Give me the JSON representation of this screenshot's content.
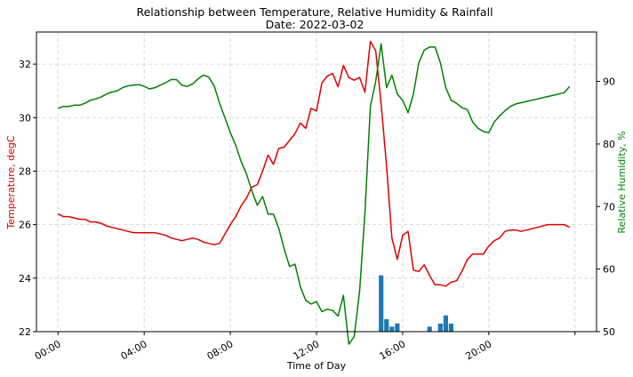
{
  "chart_data": {
    "type": "line",
    "title": "Relationship between Temperature, Relative Humidity & Rainfall",
    "subtitle": "Date: 2022-03-02",
    "xlabel": "Time of Day",
    "ylabel_left": "Temperature, degC",
    "ylabel_right": "Relative Humidity, %",
    "ylim_left": [
      22,
      33.2
    ],
    "ylim_right": [
      50,
      97.9
    ],
    "xlim": [
      "23:00",
      "25:00 next day"
    ],
    "grid": true,
    "x_tick_labels": [
      "00:00",
      "04:00",
      "08:00",
      "12:00",
      "16:00",
      "20:00",
      ""
    ],
    "y_tick_labels_left": [
      "22",
      "24",
      "26",
      "28",
      "30",
      "32"
    ],
    "y_tick_labels_right": [
      "50",
      "60",
      "70",
      "80",
      "90"
    ],
    "colors": {
      "temperature": "#e00000",
      "humidity": "#008000",
      "rainfall": "#1f77b4"
    },
    "series": [
      {
        "key": "temperature",
        "axis": "left",
        "type": "line",
        "x": [
          "00:00",
          "00:15",
          "00:30",
          "00:45",
          "01:00",
          "01:15",
          "01:30",
          "01:45",
          "02:00",
          "02:15",
          "02:30",
          "02:45",
          "03:00",
          "03:15",
          "03:30",
          "03:45",
          "04:00",
          "04:15",
          "04:30",
          "04:45",
          "05:00",
          "05:15",
          "05:30",
          "05:45",
          "06:00",
          "06:15",
          "06:30",
          "06:45",
          "07:00",
          "07:15",
          "07:30",
          "07:45",
          "08:00",
          "08:15",
          "08:30",
          "08:45",
          "09:00",
          "09:15",
          "09:30",
          "09:45",
          "10:00",
          "10:15",
          "10:30",
          "10:45",
          "11:00",
          "11:15",
          "11:30",
          "11:45",
          "12:00",
          "12:15",
          "12:30",
          "12:45",
          "13:00",
          "13:15",
          "13:30",
          "13:45",
          "14:00",
          "14:15",
          "14:30",
          "14:45",
          "15:00",
          "15:15",
          "15:30",
          "15:45",
          "16:00",
          "16:15",
          "16:30",
          "16:45",
          "17:00",
          "17:15",
          "17:30",
          "17:45",
          "18:00",
          "18:15",
          "18:30",
          "18:45",
          "19:00",
          "19:15",
          "19:30",
          "19:45",
          "20:00",
          "20:15",
          "20:30",
          "20:45",
          "21:00",
          "21:15",
          "21:30",
          "21:45",
          "22:00",
          "22:15",
          "22:30",
          "22:45",
          "23:00",
          "23:15",
          "23:30",
          "23:45"
        ],
        "values": [
          26.4,
          26.3,
          26.3,
          26.25,
          26.2,
          26.2,
          26.1,
          26.1,
          26.05,
          25.95,
          25.9,
          25.85,
          25.8,
          25.75,
          25.7,
          25.7,
          25.7,
          25.7,
          25.7,
          25.65,
          25.6,
          25.5,
          25.45,
          25.4,
          25.45,
          25.5,
          25.45,
          25.35,
          25.3,
          25.25,
          25.3,
          25.65,
          26.0,
          26.3,
          26.7,
          27.0,
          27.4,
          27.5,
          28.0,
          28.6,
          28.25,
          28.85,
          28.9,
          29.15,
          29.4,
          29.8,
          29.6,
          30.35,
          30.25,
          31.3,
          31.55,
          31.65,
          31.15,
          31.95,
          31.5,
          31.4,
          31.5,
          30.95,
          32.85,
          32.5,
          30.5,
          28.2,
          25.5,
          24.7,
          25.6,
          25.75,
          24.3,
          24.25,
          24.5,
          24.1,
          23.75,
          23.75,
          23.7,
          23.85,
          23.9,
          24.25,
          24.7,
          24.9,
          24.9,
          24.9,
          25.2,
          25.4,
          25.5,
          25.75,
          25.8,
          25.8,
          25.75,
          25.8,
          25.85,
          25.9,
          25.95,
          26.0,
          26.0,
          26.0,
          26.0,
          25.9
        ]
      },
      {
        "key": "humidity",
        "axis": "right",
        "type": "line",
        "x": [
          "00:00",
          "00:15",
          "00:30",
          "00:45",
          "01:00",
          "01:15",
          "01:30",
          "01:45",
          "02:00",
          "02:15",
          "02:30",
          "02:45",
          "03:00",
          "03:15",
          "03:30",
          "03:45",
          "04:00",
          "04:15",
          "04:30",
          "04:45",
          "05:00",
          "05:15",
          "05:30",
          "05:45",
          "06:00",
          "06:15",
          "06:30",
          "06:45",
          "07:00",
          "07:15",
          "07:30",
          "07:45",
          "08:00",
          "08:15",
          "08:30",
          "08:45",
          "09:00",
          "09:15",
          "09:30",
          "09:45",
          "10:00",
          "10:15",
          "10:30",
          "10:45",
          "11:00",
          "11:15",
          "11:30",
          "11:45",
          "12:00",
          "12:15",
          "12:30",
          "12:45",
          "13:00",
          "13:15",
          "13:30",
          "13:45",
          "14:00",
          "14:15",
          "14:30",
          "14:45",
          "15:00",
          "15:15",
          "15:30",
          "15:45",
          "16:00",
          "16:15",
          "16:30",
          "16:45",
          "17:00",
          "17:15",
          "17:30",
          "17:45",
          "18:00",
          "18:15",
          "18:30",
          "18:45",
          "19:00",
          "19:15",
          "19:30",
          "19:45",
          "20:00",
          "20:15",
          "20:30",
          "20:45",
          "21:00",
          "21:15",
          "21:30",
          "21:45",
          "22:00",
          "22:15",
          "22:30",
          "22:45",
          "23:00",
          "23:15",
          "23:30",
          "23:45"
        ],
        "values": [
          85.7,
          86.0,
          86.0,
          86.2,
          86.2,
          86.5,
          87.0,
          87.2,
          87.5,
          88.0,
          88.3,
          88.5,
          89.0,
          89.3,
          89.4,
          89.5,
          89.2,
          88.8,
          89.0,
          89.4,
          89.8,
          90.3,
          90.3,
          89.4,
          89.2,
          89.6,
          90.4,
          91.0,
          90.7,
          89.3,
          86.5,
          84.2,
          81.8,
          79.8,
          77.2,
          75.2,
          72.5,
          70.2,
          71.6,
          68.8,
          68.8,
          66.5,
          63.2,
          60.4,
          60.8,
          57.2,
          55.0,
          54.4,
          54.8,
          53.2,
          53.6,
          53.4,
          52.5,
          55.8,
          48.0,
          49.2,
          56.5,
          69.0,
          86.0,
          90.0,
          96.0,
          89.0,
          91.0,
          88.0,
          87.0,
          85.0,
          88.0,
          93.0,
          95.0,
          95.5,
          95.5,
          93.0,
          89.0,
          87.0,
          86.5,
          85.8,
          85.5,
          83.5,
          82.5,
          82.0,
          81.8,
          83.5,
          84.5,
          85.3,
          86.0,
          86.4,
          86.6,
          86.8,
          87.0,
          87.2,
          87.4,
          87.6,
          87.8,
          88.0,
          88.2,
          89.2
        ]
      },
      {
        "key": "rainfall",
        "axis": "right",
        "type": "bar",
        "x": [
          "15:00",
          "15:15",
          "15:30",
          "15:45",
          "17:15",
          "17:45",
          "18:00",
          "18:15"
        ],
        "values": [
          59.0,
          52.0,
          50.8,
          51.3,
          50.8,
          51.3,
          52.6,
          51.3
        ]
      }
    ]
  }
}
